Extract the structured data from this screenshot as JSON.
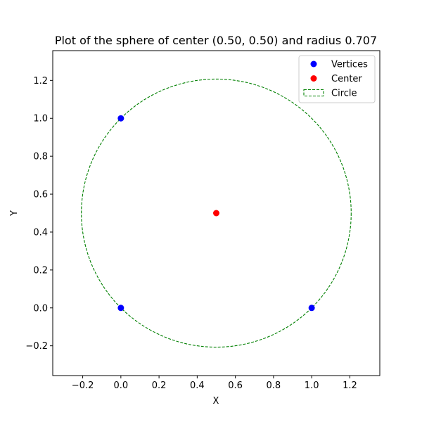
{
  "chart_data": {
    "type": "scatter",
    "title": "Plot of the sphere of center (0.50, 0.50) and radius 0.707",
    "xlabel": "X",
    "ylabel": "Y",
    "xlim": [
      -0.357,
      1.357
    ],
    "ylim": [
      -0.357,
      1.357
    ],
    "xticks": [
      -0.2,
      0.0,
      0.2,
      0.4,
      0.6,
      0.8,
      1.0,
      1.2
    ],
    "xtick_labels": [
      "−0.2",
      "0.0",
      "0.2",
      "0.4",
      "0.6",
      "0.8",
      "1.0",
      "1.2"
    ],
    "yticks": [
      -0.2,
      0.0,
      0.2,
      0.4,
      0.6,
      0.8,
      1.0,
      1.2
    ],
    "ytick_labels": [
      "−0.2",
      "0.0",
      "0.2",
      "0.4",
      "0.6",
      "0.8",
      "1.0",
      "1.2"
    ],
    "grid": false,
    "legend_position": "top-right",
    "series": [
      {
        "name": "Vertices",
        "kind": "scatter",
        "color": "#0000ff",
        "points": [
          {
            "x": 0.0,
            "y": 1.0
          },
          {
            "x": 0.0,
            "y": 0.0
          },
          {
            "x": 1.0,
            "y": 0.0
          }
        ]
      },
      {
        "name": "Center",
        "kind": "scatter",
        "color": "#ff0000",
        "points": [
          {
            "x": 0.5,
            "y": 0.5
          }
        ]
      },
      {
        "name": "Circle",
        "kind": "circle",
        "color": "#008000",
        "line_style": "dashed",
        "center": {
          "x": 0.5,
          "y": 0.5
        },
        "radius": 0.707
      }
    ]
  }
}
